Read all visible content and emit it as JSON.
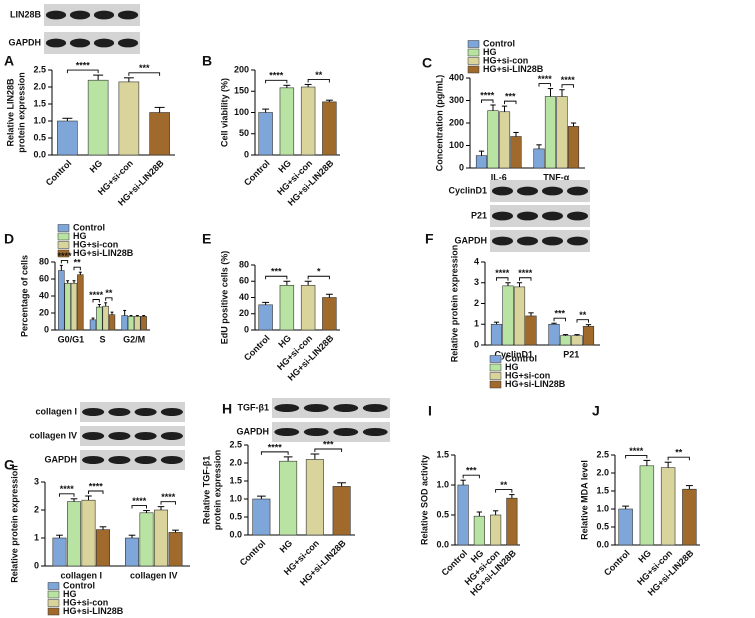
{
  "chart_data": [
    {
      "type": "bar",
      "panel": "A",
      "blot_labels": [
        "LIN28B",
        "GAPDH"
      ],
      "ylabel": [
        "Relative LIN28B",
        "protein expression"
      ],
      "categories": [
        "Control",
        "HG",
        "HG+si-con",
        "HG+si-LIN28B"
      ],
      "values": [
        1.0,
        2.2,
        2.15,
        1.25
      ],
      "errors": [
        0.08,
        0.15,
        0.12,
        0.15
      ],
      "colors": [
        "#7ea6d8",
        "#b9e3a3",
        "#d8d49c",
        "#a06a2c"
      ],
      "ylim": [
        0,
        2.5
      ],
      "yticks": [
        {
          "value": 0,
          "label": "0.0"
        },
        {
          "value": 0.5,
          "label": "0.5"
        },
        {
          "value": 1,
          "label": "1.0"
        },
        {
          "value": 1.5,
          "label": "1.5"
        },
        {
          "value": 2,
          "label": "2.0"
        },
        {
          "value": 2.5,
          "label": "2.5"
        }
      ],
      "significance": [
        {
          "label": "****",
          "pair": [
            "Control",
            "HG"
          ]
        },
        {
          "label": "***",
          "pair": [
            "HG+si-con",
            "HG+si-LIN28B"
          ]
        }
      ]
    },
    {
      "type": "bar",
      "panel": "B",
      "ylabel": [
        "Cell viability (%)"
      ],
      "categories": [
        "Control",
        "HG",
        "HG+si-con",
        "HG+si-LIN28B"
      ],
      "values": [
        100,
        158,
        160,
        125
      ],
      "errors": [
        8,
        6,
        6,
        4
      ],
      "colors": [
        "#7ea6d8",
        "#b9e3a3",
        "#d8d49c",
        "#a06a2c"
      ],
      "ylim": [
        0,
        200
      ],
      "yticks": [
        0,
        50,
        100,
        150,
        200
      ],
      "significance": [
        {
          "label": "****",
          "pair": [
            "Control",
            "HG"
          ]
        },
        {
          "label": "**",
          "pair": [
            "HG+si-con",
            "HG+si-LIN28B"
          ]
        }
      ]
    },
    {
      "type": "bar",
      "panel": "C",
      "ylabel": [
        "Concentration (pg/mL)"
      ],
      "categories": [
        "IL-6",
        "TNF-α"
      ],
      "series": [
        {
          "name": "Control",
          "color": "#7ea6d8",
          "values": [
            55,
            85
          ],
          "errors": [
            20,
            18
          ]
        },
        {
          "name": "HG",
          "color": "#b9e3a3",
          "values": [
            255,
            318
          ],
          "errors": [
            25,
            35
          ]
        },
        {
          "name": "HG+si-con",
          "color": "#d8d49c",
          "values": [
            250,
            318
          ],
          "errors": [
            25,
            30
          ]
        },
        {
          "name": "HG+si-LIN28B",
          "color": "#a06a2c",
          "values": [
            140,
            185
          ],
          "errors": [
            18,
            15
          ]
        }
      ],
      "ylim": [
        0,
        400
      ],
      "yticks": [
        0,
        100,
        200,
        300,
        400
      ],
      "significance": [
        {
          "group": "IL-6",
          "label": "****",
          "pair": [
            "Control",
            "HG"
          ]
        },
        {
          "group": "IL-6",
          "label": "***",
          "pair": [
            "HG+si-con",
            "HG+si-LIN28B"
          ]
        },
        {
          "group": "TNF-α",
          "label": "****",
          "pair": [
            "Control",
            "HG"
          ]
        },
        {
          "group": "TNF-α",
          "label": "****",
          "pair": [
            "HG+si-con",
            "HG+si-LIN28B"
          ]
        }
      ]
    },
    {
      "type": "bar",
      "panel": "D",
      "ylabel": [
        "Percentage of cells"
      ],
      "categories": [
        "G0/G1",
        "S",
        "G2/M"
      ],
      "series": [
        {
          "name": "Control",
          "color": "#7ea6d8",
          "values": [
            70,
            12,
            17
          ],
          "errors": [
            6,
            2,
            6
          ]
        },
        {
          "name": "HG",
          "color": "#b9e3a3",
          "values": [
            55,
            27,
            16
          ],
          "errors": [
            3,
            3,
            1
          ]
        },
        {
          "name": "HG+si-con",
          "color": "#d8d49c",
          "values": [
            55,
            28,
            16
          ],
          "errors": [
            3,
            4,
            1
          ]
        },
        {
          "name": "HG+si-LIN28B",
          "color": "#a06a2c",
          "values": [
            65,
            18,
            16
          ],
          "errors": [
            3,
            3,
            1
          ]
        }
      ],
      "ylim": [
        0,
        80
      ],
      "yticks": [
        0,
        20,
        40,
        60,
        80
      ],
      "significance": [
        {
          "group": "G0/G1",
          "label": "****",
          "pair": [
            "Control",
            "HG"
          ]
        },
        {
          "group": "G0/G1",
          "label": "**",
          "pair": [
            "HG+si-con",
            "HG+si-LIN28B"
          ]
        },
        {
          "group": "S",
          "label": "****",
          "pair": [
            "Control",
            "HG"
          ]
        },
        {
          "group": "S",
          "label": "**",
          "pair": [
            "HG+si-con",
            "HG+si-LIN28B"
          ]
        }
      ]
    },
    {
      "type": "bar",
      "panel": "E",
      "ylabel": [
        "EdU positive cells (%)"
      ],
      "categories": [
        "Control",
        "HG",
        "HG+si-con",
        "HG+si-LIN28B"
      ],
      "values": [
        31,
        55,
        55,
        40
      ],
      "errors": [
        3,
        5,
        5,
        4
      ],
      "colors": [
        "#7ea6d8",
        "#b9e3a3",
        "#d8d49c",
        "#a06a2c"
      ],
      "ylim": [
        0,
        80
      ],
      "yticks": [
        0,
        20,
        40,
        60,
        80
      ],
      "significance": [
        {
          "label": "***",
          "pair": [
            "Control",
            "HG"
          ]
        },
        {
          "label": "*",
          "pair": [
            "HG+si-con",
            "HG+si-LIN28B"
          ]
        }
      ]
    },
    {
      "type": "bar",
      "panel": "F",
      "blot_labels": [
        "CyclinD1",
        "P21",
        "GAPDH"
      ],
      "ylabel": [
        "Relative protein expression"
      ],
      "categories": [
        "CyclinD1",
        "P21"
      ],
      "series": [
        {
          "name": "Control",
          "color": "#7ea6d8",
          "values": [
            1.0,
            1.0
          ],
          "errors": [
            0.1,
            0.05
          ]
        },
        {
          "name": "HG",
          "color": "#b9e3a3",
          "values": [
            2.85,
            0.45
          ],
          "errors": [
            0.15,
            0.05
          ]
        },
        {
          "name": "HG+si-con",
          "color": "#d8d49c",
          "values": [
            2.8,
            0.45
          ],
          "errors": [
            0.2,
            0.05
          ]
        },
        {
          "name": "HG+si-LIN28B",
          "color": "#a06a2c",
          "values": [
            1.4,
            0.9
          ],
          "errors": [
            0.15,
            0.08
          ]
        }
      ],
      "ylim": [
        0,
        4
      ],
      "yticks": [
        0,
        1,
        2,
        3,
        4
      ],
      "significance": [
        {
          "group": "CyclinD1",
          "label": "****",
          "pair": [
            "Control",
            "HG"
          ]
        },
        {
          "group": "CyclinD1",
          "label": "****",
          "pair": [
            "HG+si-con",
            "HG+si-LIN28B"
          ]
        },
        {
          "group": "P21",
          "label": "***",
          "pair": [
            "Control",
            "HG"
          ]
        },
        {
          "group": "P21",
          "label": "**",
          "pair": [
            "HG+si-con",
            "HG+si-LIN28B"
          ]
        }
      ]
    },
    {
      "type": "bar",
      "panel": "G",
      "blot_labels": [
        "collagen I",
        "collagen IV",
        "GAPDH"
      ],
      "ylabel": [
        "Relative protein expression"
      ],
      "categories": [
        "collagen I",
        "collagen IV"
      ],
      "series": [
        {
          "name": "Control",
          "color": "#7ea6d8",
          "values": [
            1.0,
            1.0
          ],
          "errors": [
            0.1,
            0.1
          ]
        },
        {
          "name": "HG",
          "color": "#b9e3a3",
          "values": [
            2.3,
            1.9
          ],
          "errors": [
            0.1,
            0.08
          ]
        },
        {
          "name": "HG+si-con",
          "color": "#d8d49c",
          "values": [
            2.35,
            2.0
          ],
          "errors": [
            0.15,
            0.12
          ]
        },
        {
          "name": "HG+si-LIN28B",
          "color": "#a06a2c",
          "values": [
            1.3,
            1.2
          ],
          "errors": [
            0.1,
            0.08
          ]
        }
      ],
      "ylim": [
        0,
        3
      ],
      "yticks": [
        0,
        1,
        2,
        3
      ],
      "significance": [
        {
          "group": "collagen I",
          "label": "****",
          "pair": [
            "Control",
            "HG"
          ]
        },
        {
          "group": "collagen I",
          "label": "****",
          "pair": [
            "HG+si-con",
            "HG+si-LIN28B"
          ]
        },
        {
          "group": "collagen IV",
          "label": "****",
          "pair": [
            "Control",
            "HG"
          ]
        },
        {
          "group": "collagen IV",
          "label": "****",
          "pair": [
            "HG+si-con",
            "HG+si-LIN28B"
          ]
        }
      ]
    },
    {
      "type": "bar",
      "panel": "H",
      "blot_labels": [
        "TGF-β1",
        "GAPDH"
      ],
      "ylabel": [
        "Relative TGF-β1",
        "protein expression"
      ],
      "categories": [
        "Control",
        "HG",
        "HG+si-con",
        "HG+si-LIN28B"
      ],
      "values": [
        1.0,
        2.05,
        2.1,
        1.35
      ],
      "errors": [
        0.08,
        0.12,
        0.15,
        0.1
      ],
      "colors": [
        "#7ea6d8",
        "#b9e3a3",
        "#d8d49c",
        "#a06a2c"
      ],
      "ylim": [
        0,
        2.5
      ],
      "yticks": [
        {
          "value": 0,
          "label": "0.0"
        },
        {
          "value": 0.5,
          "label": "0.5"
        },
        {
          "value": 1,
          "label": "1.0"
        },
        {
          "value": 1.5,
          "label": "1.5"
        },
        {
          "value": 2,
          "label": "2.0"
        },
        {
          "value": 2.5,
          "label": "2.5"
        }
      ],
      "significance": [
        {
          "label": "****",
          "pair": [
            "Control",
            "HG"
          ]
        },
        {
          "label": "***",
          "pair": [
            "HG+si-con",
            "HG+si-LIN28B"
          ]
        }
      ]
    },
    {
      "type": "bar",
      "panel": "I",
      "ylabel": [
        "Relative SOD activity"
      ],
      "categories": [
        "Control",
        "HG",
        "HG+si-con",
        "HG+si-LIN28B"
      ],
      "values": [
        1.0,
        0.48,
        0.5,
        0.78
      ],
      "errors": [
        0.08,
        0.07,
        0.07,
        0.06
      ],
      "colors": [
        "#7ea6d8",
        "#b9e3a3",
        "#d8d49c",
        "#a06a2c"
      ],
      "ylim": [
        0,
        1.5
      ],
      "yticks": [
        {
          "value": 0,
          "label": "0.0"
        },
        {
          "value": 0.5,
          "label": "0.5"
        },
        {
          "value": 1,
          "label": "1.0"
        },
        {
          "value": 1.5,
          "label": "1.5"
        }
      ],
      "significance": [
        {
          "label": "***",
          "pair": [
            "Control",
            "HG"
          ]
        },
        {
          "label": "**",
          "pair": [
            "HG+si-con",
            "HG+si-LIN28B"
          ]
        }
      ]
    },
    {
      "type": "bar",
      "panel": "J",
      "ylabel": [
        "Relative MDA level"
      ],
      "categories": [
        "Control",
        "HG",
        "HG+si-con",
        "HG+si-LIN28B"
      ],
      "values": [
        1.0,
        2.2,
        2.15,
        1.55
      ],
      "errors": [
        0.08,
        0.15,
        0.15,
        0.1
      ],
      "colors": [
        "#7ea6d8",
        "#b9e3a3",
        "#d8d49c",
        "#a06a2c"
      ],
      "ylim": [
        0,
        2.5
      ],
      "yticks": [
        {
          "value": 0,
          "label": "0.0"
        },
        {
          "value": 0.5,
          "label": "0.5"
        },
        {
          "value": 1,
          "label": "1.0"
        },
        {
          "value": 1.5,
          "label": "1.5"
        },
        {
          "value": 2,
          "label": "2.0"
        },
        {
          "value": 2.5,
          "label": "2.5"
        }
      ],
      "significance": [
        {
          "label": "****",
          "pair": [
            "Control",
            "HG"
          ]
        },
        {
          "label": "**",
          "pair": [
            "HG+si-con",
            "HG+si-LIN28B"
          ]
        }
      ]
    }
  ]
}
